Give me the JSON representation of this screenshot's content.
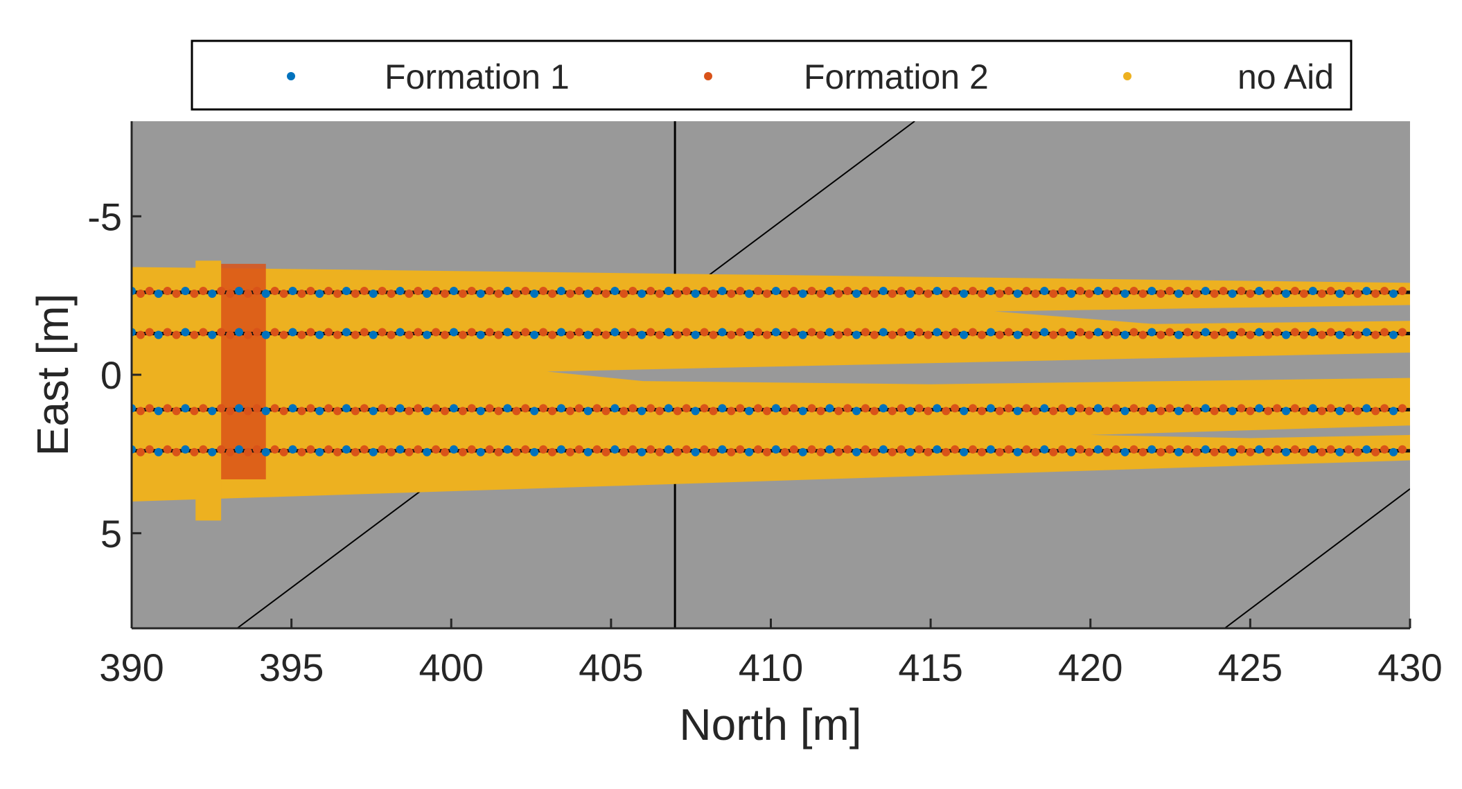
{
  "chart_data": {
    "type": "scatter",
    "xlabel": "North [m]",
    "ylabel": "East [m]",
    "xlim": [
      390,
      430
    ],
    "ylim": [
      -8,
      8
    ],
    "y_reversed": true,
    "x_ticks": [
      390,
      395,
      400,
      405,
      410,
      415,
      420,
      425,
      430
    ],
    "x_tick_labels": [
      "390",
      "395",
      "400",
      "405",
      "410",
      "415",
      "420",
      "425",
      "430"
    ],
    "y_ticks": [
      -5,
      0,
      5
    ],
    "y_tick_labels": [
      "-5",
      "0",
      "5"
    ],
    "background_color": "#999999",
    "legend_position": "top",
    "series": [
      {
        "name": "Formation 1",
        "color": "#0072BD"
      },
      {
        "name": "Formation 2",
        "color": "#D95319"
      },
      {
        "name": "no Aid",
        "color": "#EDB120"
      }
    ],
    "track_lines_east": [
      -2.6,
      -1.3,
      1.1,
      2.4
    ],
    "track_start_north": 390,
    "track_end_north": 430,
    "reference_lines": [
      {
        "type": "vertical",
        "x": 407
      },
      {
        "type": "diagonal",
        "from": [
          393.3,
          8
        ],
        "to": [
          414.5,
          -8
        ]
      },
      {
        "type": "diagonal",
        "from": [
          424.2,
          8
        ],
        "to": [
          430,
          3.6
        ]
      }
    ],
    "no_aid_band": {
      "north_start": 390,
      "north_end": 430,
      "east_min_start": -3.4,
      "east_max_start": 4.0,
      "east_min_end": -2.9,
      "east_max_end": 2.7
    },
    "start_cluster": {
      "north_min": 392.7,
      "north_max": 394.2,
      "east_min": -3.5,
      "east_max": 3.3
    }
  }
}
